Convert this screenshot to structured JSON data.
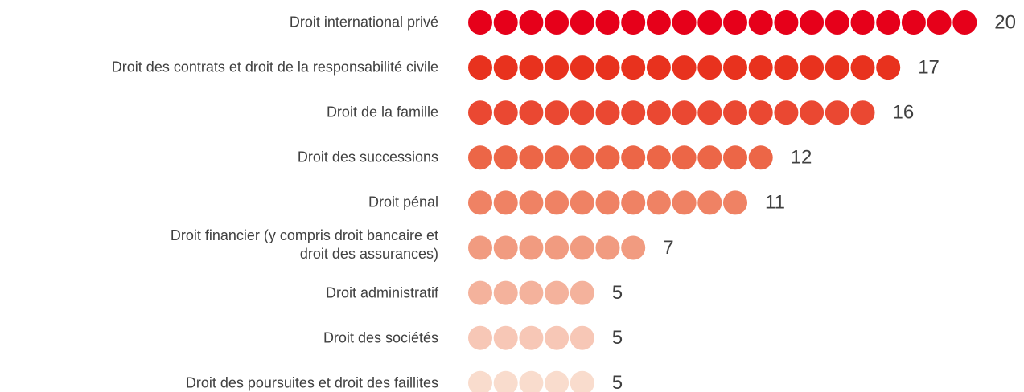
{
  "chart_data": {
    "type": "dot",
    "categories": [
      "Droit international privé",
      "Droit des contrats et droit de la responsabilité civile",
      "Droit de la famille",
      "Droit des successions",
      "Droit pénal",
      "Droit financier (y compris droit bancaire et\ndroit des assurances)",
      "Droit administratif",
      "Droit des sociétés",
      "Droit des poursuites et droit des faillites"
    ],
    "values": [
      20,
      17,
      16,
      12,
      11,
      7,
      5,
      5,
      5
    ],
    "colors": [
      "#e6001a",
      "#e8321e",
      "#ea4832",
      "#ec6647",
      "#ef8264",
      "#f19b80",
      "#f4b29c",
      "#f7c7b6",
      "#f9dccd"
    ]
  }
}
